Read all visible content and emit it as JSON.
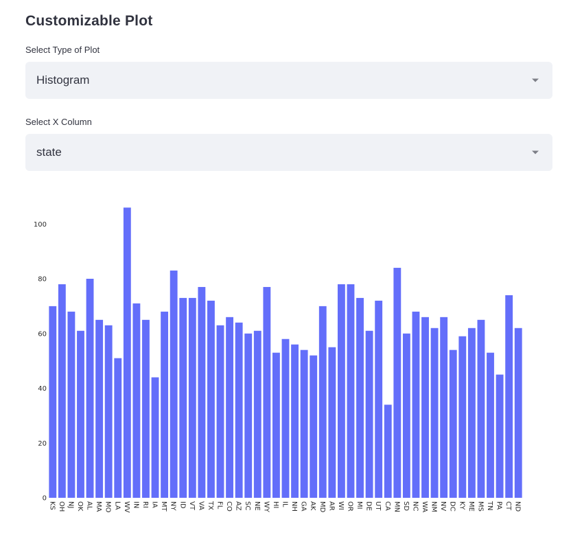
{
  "page": {
    "title": "Customizable Plot"
  },
  "plot_type_select": {
    "label": "Select Type of Plot",
    "value": "Histogram"
  },
  "x_column_select": {
    "label": "Select X Column",
    "value": "state"
  },
  "colors": {
    "bar": "#636efa",
    "select_bg": "#f0f2f6"
  },
  "chart_data": {
    "type": "bar",
    "categories": [
      "KS",
      "OH",
      "NJ",
      "OK",
      "AL",
      "MA",
      "MO",
      "LA",
      "WV",
      "IN",
      "RI",
      "IA",
      "MT",
      "NY",
      "ID",
      "VT",
      "VA",
      "TX",
      "FL",
      "CO",
      "AZ",
      "SC",
      "NE",
      "WY",
      "HI",
      "IL",
      "NH",
      "GA",
      "AK",
      "MD",
      "AR",
      "WI",
      "OR",
      "MI",
      "DE",
      "UT",
      "CA",
      "MN",
      "SD",
      "NC",
      "WA",
      "NM",
      "NV",
      "DC",
      "KY",
      "ME",
      "MS",
      "TN",
      "PA",
      "CT",
      "ND"
    ],
    "values": [
      70,
      78,
      68,
      61,
      80,
      65,
      63,
      51,
      106,
      71,
      65,
      44,
      68,
      83,
      73,
      73,
      77,
      72,
      63,
      66,
      64,
      60,
      61,
      77,
      53,
      58,
      56,
      54,
      52,
      70,
      55,
      78,
      78,
      73,
      61,
      72,
      34,
      84,
      60,
      68,
      66,
      62,
      66,
      54,
      59,
      62,
      65,
      53,
      45,
      74,
      62
    ],
    "yticks": [
      0,
      20,
      40,
      60,
      80,
      100
    ],
    "ylim": [
      0,
      111.6
    ],
    "title": "",
    "xlabel": "",
    "ylabel": ""
  }
}
